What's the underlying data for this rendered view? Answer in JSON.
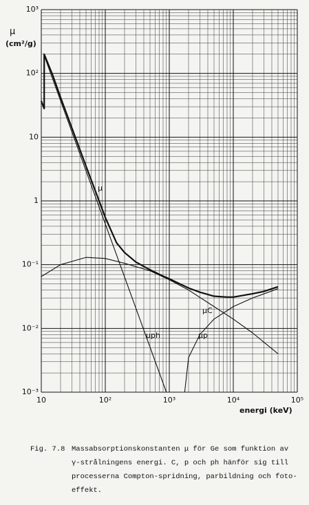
{
  "chart_data": {
    "type": "line",
    "ylabel": "μ",
    "yunit": "(cm²/g)",
    "xlabel": "energi (keV)",
    "xscale": "log",
    "yscale": "log",
    "grid": true,
    "xlim": [
      10,
      100000
    ],
    "ylim": [
      0.001,
      1000
    ],
    "xticks": [
      10,
      {
        "value": 100,
        "label": "10²"
      },
      {
        "value": 1000,
        "label": "10³"
      },
      {
        "value": 10000,
        "label": "10⁴"
      },
      {
        "value": 100000,
        "label": "10⁵"
      }
    ],
    "yticks": [
      {
        "value": 0.001,
        "label": "10⁻³"
      },
      {
        "value": 0.01,
        "label": "10⁻²"
      },
      {
        "value": 0.1,
        "label": "10⁻¹"
      },
      1,
      10,
      {
        "value": 100,
        "label": "10²"
      },
      {
        "value": 1000,
        "label": "10³"
      }
    ],
    "series": [
      {
        "name": "μ",
        "color": "#111111",
        "x": [
          10,
          11.1,
          11.1,
          15,
          20,
          30,
          50,
          80,
          100,
          150,
          200,
          300,
          500,
          800,
          1000,
          2000,
          3000,
          5000,
          8000,
          10000,
          20000,
          30000,
          50000
        ],
        "values": [
          37,
          28,
          200,
          95,
          42,
          14,
          3.5,
          1.0,
          0.55,
          0.22,
          0.155,
          0.11,
          0.083,
          0.066,
          0.06,
          0.043,
          0.037,
          0.032,
          0.031,
          0.031,
          0.035,
          0.038,
          0.045
        ]
      },
      {
        "name": "μph",
        "color": "#111111",
        "x": [
          11.1,
          900
        ],
        "values": [
          190,
          0.001
        ]
      },
      {
        "name": "μC",
        "color": "#111111",
        "x": [
          10,
          20,
          50,
          100,
          200,
          500,
          1000,
          2000,
          5000,
          10000,
          20000,
          50000
        ],
        "values": [
          0.065,
          0.1,
          0.13,
          0.125,
          0.105,
          0.08,
          0.058,
          0.04,
          0.022,
          0.014,
          0.0085,
          0.004
        ]
      },
      {
        "name": "μp",
        "color": "#111111",
        "x": [
          1740,
          2000,
          3000,
          5000,
          10000,
          20000,
          50000
        ],
        "values": [
          0.001,
          0.0035,
          0.008,
          0.014,
          0.022,
          0.03,
          0.042
        ]
      }
    ],
    "caption": {
      "figure": "Fig. 7.8",
      "lines": [
        "Massabsorptionskonstanten μ för Ge som funktion av",
        "γ-strålningens energi.  C, p och ph hänför sig till",
        "processerna Compton-spridning, parbildning och foto-",
        "effekt."
      ]
    }
  }
}
